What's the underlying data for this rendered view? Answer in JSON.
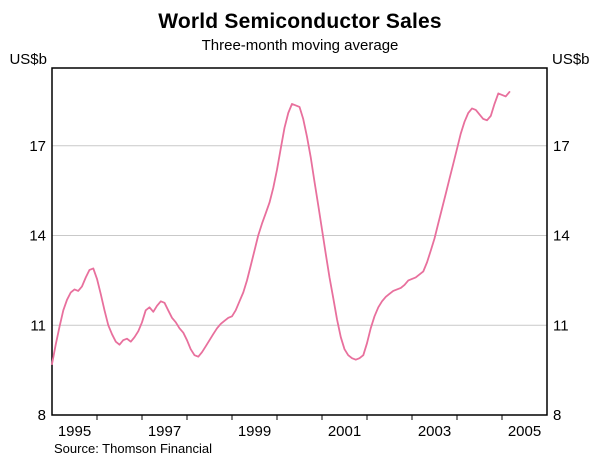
{
  "header": {
    "title": "World Semiconductor Sales",
    "subtitle": "Three-month moving average"
  },
  "axes": {
    "unit_left": "US$b",
    "unit_right": "US$b"
  },
  "footer": {
    "source": "Source: Thomson Financial"
  },
  "chart_data": {
    "type": "line",
    "title": "World Semiconductor Sales",
    "subtitle": "Three-month moving average",
    "ylabel_left": "US$b",
    "ylabel_right": "US$b",
    "source": "Source: Thomson Financial",
    "grid": "horizontal",
    "grid_color": "#c9c9c9",
    "line_color": "#e8709d",
    "ylim": [
      8,
      19.6
    ],
    "xlim": [
      1995,
      2006
    ],
    "y_ticks": [
      8,
      11,
      14,
      17
    ],
    "x_tick_labels": [
      "1995",
      "1997",
      "1999",
      "2001",
      "2003",
      "2005"
    ],
    "legend": "none",
    "series": [
      {
        "name": "World semiconductor sales, three-month moving average (US$b)",
        "x_start": 1995.0,
        "x_step_months": 1,
        "values": [
          9.7,
          10.35,
          10.95,
          11.5,
          11.85,
          12.1,
          12.2,
          12.15,
          12.3,
          12.6,
          12.85,
          12.9,
          12.55,
          12.05,
          11.5,
          11.0,
          10.7,
          10.45,
          10.35,
          10.5,
          10.55,
          10.45,
          10.6,
          10.8,
          11.1,
          11.5,
          11.6,
          11.45,
          11.65,
          11.8,
          11.75,
          11.5,
          11.25,
          11.1,
          10.9,
          10.75,
          10.5,
          10.2,
          10.0,
          9.95,
          10.1,
          10.3,
          10.5,
          10.7,
          10.9,
          11.05,
          11.15,
          11.25,
          11.3,
          11.5,
          11.8,
          12.1,
          12.5,
          13.0,
          13.5,
          14.0,
          14.4,
          14.75,
          15.1,
          15.6,
          16.2,
          16.9,
          17.6,
          18.1,
          18.4,
          18.35,
          18.3,
          17.9,
          17.3,
          16.6,
          15.8,
          15.0,
          14.2,
          13.4,
          12.6,
          11.9,
          11.2,
          10.6,
          10.2,
          10.0,
          9.9,
          9.85,
          9.9,
          10.0,
          10.4,
          10.9,
          11.3,
          11.6,
          11.8,
          11.95,
          12.05,
          12.15,
          12.2,
          12.25,
          12.35,
          12.5,
          12.55,
          12.6,
          12.7,
          12.8,
          13.1,
          13.5,
          13.9,
          14.4,
          14.9,
          15.4,
          15.9,
          16.4,
          16.9,
          17.4,
          17.8,
          18.1,
          18.25,
          18.2,
          18.05,
          17.9,
          17.85,
          18.0,
          18.4,
          18.75,
          18.7,
          18.65,
          18.8
        ]
      }
    ]
  }
}
